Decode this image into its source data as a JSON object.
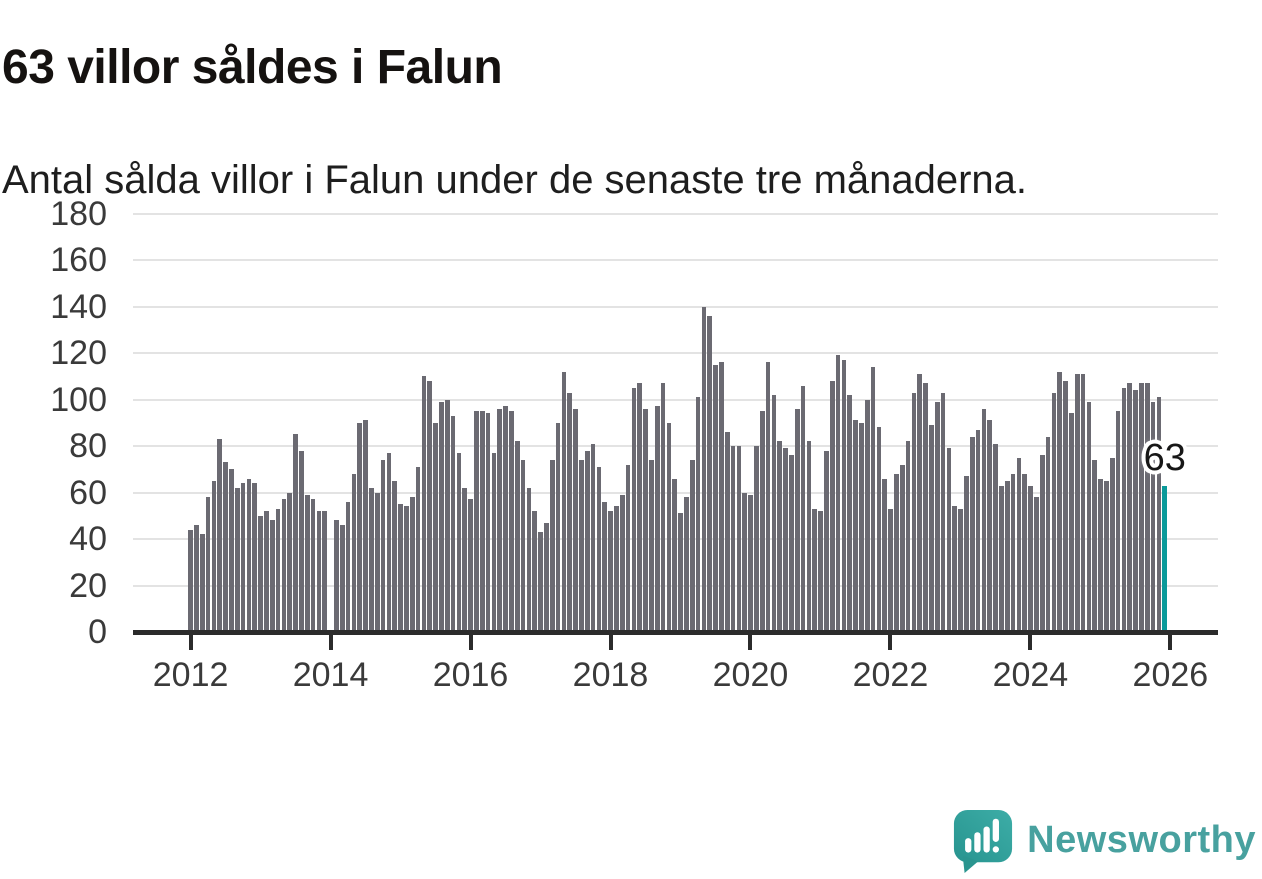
{
  "title": "63 villor såldes i Falun",
  "subtitle": "Antal sålda villor i Falun under de senaste tre månaderna.",
  "branding": {
    "logo_text": "Newsworthy",
    "logo_icon": "speech-bubble-bar-chart-icon",
    "logo_text_color": "#48a19f",
    "logo_bubble_color": "#2f9b96"
  },
  "chart_data": {
    "type": "bar",
    "title": "63 villor såldes i Falun",
    "subtitle": "Antal sålda villor i Falun under de senaste tre månaderna.",
    "x_unit": "month",
    "x_start": "2012-01",
    "x_end": "2025-12",
    "xticks": [
      "2012",
      "2014",
      "2016",
      "2018",
      "2020",
      "2022",
      "2024",
      "2026"
    ],
    "ylim": [
      0,
      180
    ],
    "yticks": [
      0,
      20,
      40,
      60,
      80,
      100,
      120,
      140,
      160,
      180
    ],
    "grid": true,
    "legend": false,
    "bar_color": "#6b6a72",
    "highlight_color": "#0a9a9a",
    "highlight": {
      "index": 167,
      "value": 63,
      "label": "63"
    },
    "values": [
      44,
      46,
      42,
      58,
      65,
      83,
      73,
      70,
      62,
      64,
      66,
      64,
      50,
      52,
      48,
      53,
      57,
      60,
      85,
      78,
      59,
      57,
      52,
      52,
      null,
      48,
      46,
      56,
      68,
      90,
      91,
      62,
      60,
      74,
      77,
      65,
      55,
      54,
      58,
      71,
      110,
      108,
      90,
      99,
      100,
      93,
      77,
      62,
      57,
      95,
      95,
      94,
      77,
      96,
      97,
      95,
      82,
      74,
      62,
      52,
      43,
      47,
      74,
      90,
      112,
      103,
      96,
      74,
      78,
      81,
      71,
      56,
      52,
      54,
      59,
      72,
      105,
      107,
      96,
      74,
      97,
      107,
      90,
      66,
      51,
      58,
      74,
      101,
      140,
      136,
      115,
      116,
      86,
      80,
      80,
      60,
      59,
      80,
      95,
      116,
      102,
      82,
      79,
      76,
      96,
      106,
      82,
      53,
      52,
      78,
      108,
      119,
      117,
      102,
      91,
      90,
      100,
      114,
      88,
      66,
      53,
      68,
      72,
      82,
      103,
      111,
      107,
      89,
      99,
      103,
      79,
      54,
      53,
      67,
      84,
      87,
      96,
      91,
      81,
      63,
      65,
      68,
      75,
      68,
      63,
      58,
      76,
      84,
      103,
      112,
      108,
      94,
      111,
      111,
      99,
      74,
      66,
      65,
      75,
      95,
      105,
      107,
      104,
      107,
      107,
      99,
      101,
      63
    ]
  }
}
